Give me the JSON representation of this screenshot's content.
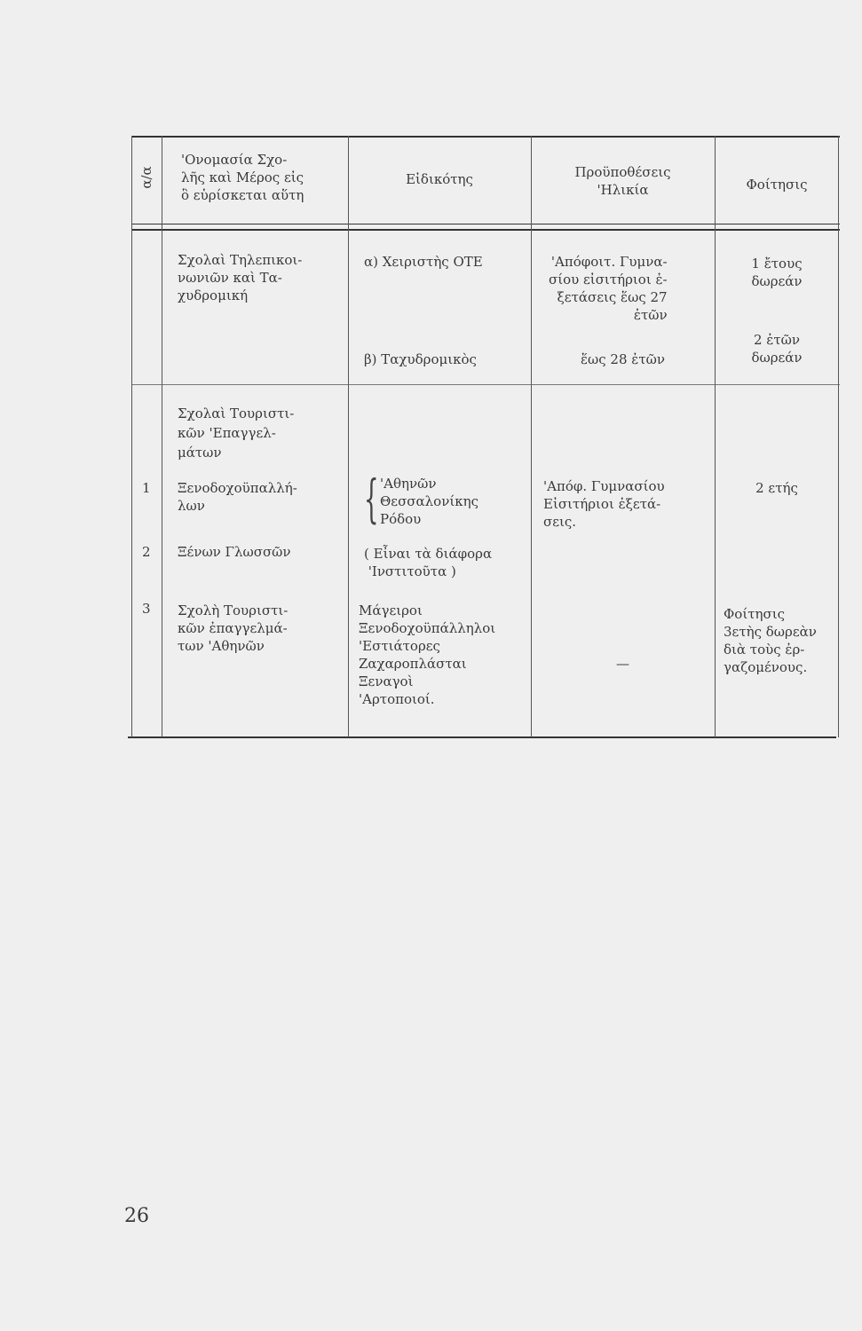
{
  "table": {
    "headers": {
      "index": "α/α",
      "name": "'Ονομασία Σχο-\nλῆς καὶ Μέρος εἰς\nὃ εὑρίσκεται αὕτη",
      "specialty": "Εἰδικότης",
      "requirements": "Προϋποθέσεις\n'Ηλικία",
      "attendance": "Φοίτησις"
    },
    "group1": {
      "name": "Σχολαὶ Τηλεπικοι-\nνωνιῶν καὶ Τα-\nχυδρομική",
      "spec_a": "α) Χειριστὴς ΟΤΕ",
      "req_a": "'Απόφοιτ. Γυμνα-\nσίου εἰσιτήριοι ἐ-\nξετάσεις ἕως 27\nἐτῶν",
      "att_a": "1 ἔτους\nδωρεάν",
      "spec_b": "β) Ταχυδρομικὸς",
      "req_b": "ἕως 28 ἐτῶν",
      "att_b": "2 ἐτῶν\nδωρεάν"
    },
    "group2": {
      "name": "Σχολαὶ Τουριστι-\nκῶν 'Επαγγελ-\nμάτων",
      "rows": [
        {
          "index": "1",
          "name": "Ξενοδοχοϋπαλλή-\nλων",
          "specialty": "'Αθηνῶν\nΘεσσαλονίκης\nΡόδου",
          "requirements": "'Απόφ. Γυμνασίου\nΕἰσιτήριοι ἐξετά-\nσεις.",
          "attendance": "2 ετής"
        },
        {
          "index": "2",
          "name": "Ξένων Γλωσσῶν",
          "specialty": "( Εἶναι τὰ διάφορα\n 'Ινστιτοῦτα )"
        },
        {
          "index": "3",
          "name": "Σχολὴ Τουριστι-\nκῶν ἐπαγγελμά-\nτων 'Αθηνῶν",
          "specialty": "Μάγειροι\nΞενοδοχοϋπάλληλοι\n'Εστιάτορες\nΖαχαροπλάσται\nΞεναγοὶ\n'Αρτοποιοί.",
          "requirements": "—",
          "attendance": "Φοίτησις\n3ετὴς δωρεὰν\nδιὰ τοὺς ἐρ-\nγαζομένους."
        }
      ]
    }
  },
  "page_number": "26"
}
